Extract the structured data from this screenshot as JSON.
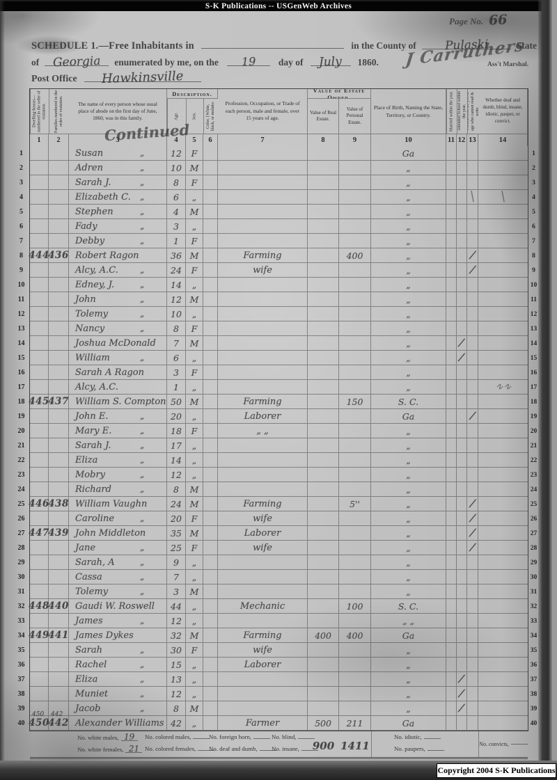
{
  "colors": {
    "paper": "#c0c0c0",
    "ink": "#2d2d2d",
    "pencil": "#5c5c5c",
    "banner_bg": "#040404",
    "banner_text": "#f2f2f2",
    "scan_edge": "#2e2e2e"
  },
  "banner": {
    "text": "S-K Publications -- USGenWeb Archives"
  },
  "copyright": {
    "text": "Copyright 2004 S-K Publications"
  },
  "page_header": {
    "page_no_label": "Page No.",
    "page_no_value": "66",
    "schedule_line": "SCHEDULE 1.—Free Inhabitants in",
    "county_label": "in the County of",
    "county_value": "Pulaski",
    "state_label": "State",
    "of_label": "of",
    "state_value": "Georgia",
    "enumerated_label": "enumerated by me, on the",
    "day_value": "19",
    "day_of_label": "day of",
    "month_value": "July",
    "year_label": "1860.",
    "marshal_signature": "J Carruthers",
    "marshal_label": "Ass't Marshal.",
    "post_office_label": "Post Office",
    "post_office_value": "Hawkinsville"
  },
  "table": {
    "continued_note": "Continued",
    "group_headers": {
      "descriptions": "Description.",
      "estate": "Value of Estate Owned."
    },
    "columns": [
      {
        "no": "1",
        "title": "Dwelling-houses—numbered in the order of visitation."
      },
      {
        "no": "2",
        "title": "Families numbered in the order of visitation."
      },
      {
        "no": "3",
        "title": "The name of every person whose usual place of abode on the first day of June, 1860, was in this family."
      },
      {
        "no": "4",
        "title": "Age."
      },
      {
        "no": "5",
        "title": "Sex."
      },
      {
        "no": "6",
        "title": "Color, {White, black, or mulatto."
      },
      {
        "no": "7",
        "title": "Profession, Occupation, or Trade of each person, male and female, over 15 years of age."
      },
      {
        "no": "8",
        "title": "Value of Real Estate."
      },
      {
        "no": "9",
        "title": "Value of Personal Estate."
      },
      {
        "no": "10",
        "title": "Place of Birth, Naming the State, Territory, or Country."
      },
      {
        "no": "11",
        "title": "Married within the year."
      },
      {
        "no": "12",
        "title": "Attended School within the year."
      },
      {
        "no": "13",
        "title": "Persons over 20 y'rs of age who cannot read & write."
      },
      {
        "no": "14",
        "title": "Whether deaf and dumb, blind, insane, idiotic, pauper, or convict."
      }
    ],
    "rows": [
      {
        "n": 1,
        "name": "Susan",
        "dit": true,
        "age": "12",
        "sex": "F",
        "bi": "Ga"
      },
      {
        "n": 2,
        "name": "Adren",
        "dit": true,
        "age": "10",
        "sex": "M",
        "bi": ",,"
      },
      {
        "n": 3,
        "name": "Sarah J.",
        "dit": true,
        "age": "8",
        "sex": "F",
        "bi": ",,"
      },
      {
        "n": 4,
        "name": "Elizabeth C.",
        "dit": true,
        "age": "6",
        "sex": ",,",
        "bi": ",,",
        "st": "slashes"
      },
      {
        "n": 5,
        "name": "Stephen",
        "dit": true,
        "age": "4",
        "sex": "M",
        "bi": ",,"
      },
      {
        "n": 6,
        "name": "Fady",
        "dit": true,
        "age": "3",
        "sex": ",,",
        "bi": ",,"
      },
      {
        "n": 7,
        "name": "Debby",
        "dit": true,
        "age": "1",
        "sex": "F",
        "bi": ",,"
      },
      {
        "n": 8,
        "dw": "444",
        "fa": "436",
        "name": "Robert Ragon",
        "age": "36",
        "sex": "M",
        "occ": "Farming",
        "pe": "400",
        "bi": ",,",
        "t13": true
      },
      {
        "n": 9,
        "name": "Alcy, A.C.",
        "dit": true,
        "age": "24",
        "sex": "F",
        "occ": "wife",
        "bi": ",,",
        "t13": true
      },
      {
        "n": 10,
        "name": "Edney, J.",
        "dit": true,
        "age": "14",
        "sex": ",,",
        "bi": ",,"
      },
      {
        "n": 11,
        "name": "John",
        "dit": true,
        "age": "12",
        "sex": "M",
        "bi": ",,"
      },
      {
        "n": 12,
        "name": "Tolemy",
        "dit": true,
        "age": "10",
        "sex": ",,",
        "bi": ",,"
      },
      {
        "n": 13,
        "name": "Nancy",
        "dit": true,
        "age": "8",
        "sex": "F",
        "bi": ",,"
      },
      {
        "n": 14,
        "name": "Joshua McDonald",
        "age": "7",
        "sex": "M",
        "bi": ",,",
        "t12": true
      },
      {
        "n": 15,
        "name": "William",
        "dit": true,
        "age": "6",
        "sex": ",,",
        "bi": ",,",
        "t12": true
      },
      {
        "n": 16,
        "name": "Sarah A Ragon",
        "age": "3",
        "sex": "F",
        "bi": ",,"
      },
      {
        "n": 17,
        "name": "Alcy, A.C.",
        "age": "1",
        "sex": ",,",
        "bi": ",,",
        "st": "scribble"
      },
      {
        "n": 18,
        "dw": "445",
        "fa": "437",
        "name": "William S. Compton",
        "age": "50",
        "sex": "M",
        "occ": "Farming",
        "pe": "150",
        "bi": "S. C."
      },
      {
        "n": 19,
        "name": "John E.",
        "dit": true,
        "age": "20",
        "sex": ",,",
        "occ": "Laborer",
        "bi": "Ga",
        "t13": true
      },
      {
        "n": 20,
        "name": "Mary E.",
        "dit": true,
        "age": "18",
        "sex": "F",
        "occ": ",, ,,",
        "bi": ",,"
      },
      {
        "n": 21,
        "name": "Sarah J.",
        "dit": true,
        "age": "17",
        "sex": ",,",
        "bi": ",,"
      },
      {
        "n": 22,
        "name": "Eliza",
        "dit": true,
        "age": "14",
        "sex": ",,",
        "bi": ",,"
      },
      {
        "n": 23,
        "name": "Mobry",
        "dit": true,
        "age": "12",
        "sex": ",,",
        "bi": ",,"
      },
      {
        "n": 24,
        "name": "Richard",
        "dit": true,
        "age": "8",
        "sex": "M",
        "bi": ",,"
      },
      {
        "n": 25,
        "dw": "446",
        "fa": "438",
        "name": "William Vaughn",
        "age": "24",
        "sex": "M",
        "occ": "Farming",
        "pe": "5''",
        "bi": ",,",
        "t13": true
      },
      {
        "n": 26,
        "name": "Caroline",
        "dit": true,
        "age": "20",
        "sex": "F",
        "occ": "wife",
        "bi": ",,",
        "t13": true
      },
      {
        "n": 27,
        "dw": "447",
        "fa": "439",
        "name": "John Middleton",
        "age": "35",
        "sex": "M",
        "occ": "Laborer",
        "bi": ",,",
        "t13": true
      },
      {
        "n": 28,
        "name": "Jane",
        "dit": true,
        "age": "25",
        "sex": "F",
        "occ": "wife",
        "bi": ",,",
        "t13": true
      },
      {
        "n": 29,
        "name": "Sarah, A",
        "dit": true,
        "age": "9",
        "sex": ",,",
        "bi": ",,"
      },
      {
        "n": 30,
        "name": "Cassa",
        "dit": true,
        "age": "7",
        "sex": ",,",
        "bi": ",,"
      },
      {
        "n": 31,
        "name": "Tolemy",
        "dit": true,
        "age": "3",
        "sex": "M",
        "bi": ",,"
      },
      {
        "n": 32,
        "dw": "448",
        "fa": "440",
        "name": "Gaudi W. Roswell",
        "age": "44",
        "sex": ",,",
        "occ": "Mechanic",
        "pe": "100",
        "bi": "S. C."
      },
      {
        "n": 33,
        "name": "James",
        "dit": true,
        "age": "12",
        "sex": ",,",
        "bi": ",, ,,"
      },
      {
        "n": 34,
        "dw": "449",
        "fa": "441",
        "name": "James Dykes",
        "age": "32",
        "sex": "M",
        "occ": "Farming",
        "re": "400",
        "pe": "400",
        "bi": "Ga"
      },
      {
        "n": 35,
        "name": "Sarah",
        "dit": true,
        "age": "30",
        "sex": "F",
        "occ": "wife",
        "bi": ",,"
      },
      {
        "n": 36,
        "name": "Rachel",
        "dit": true,
        "age": "15",
        "sex": ",,",
        "occ": "Laborer",
        "bi": ",,"
      },
      {
        "n": 37,
        "name": "Eliza",
        "dit": true,
        "age": "13",
        "sex": ",,",
        "bi": ",,",
        "t12": true
      },
      {
        "n": 38,
        "name": "Muniet",
        "dit": true,
        "age": "12",
        "sex": ",,",
        "bi": ",,",
        "t12": true
      },
      {
        "n": 39,
        "name": "Jacob",
        "dit": true,
        "age": "8",
        "sex": "M",
        "bi": ",,",
        "t12": true,
        "dwSmall": "450",
        "faSmall": "442"
      },
      {
        "n": 40,
        "dw": "450",
        "fa": "442",
        "name": "Alexander Williams",
        "age": "42",
        "sex": ",,",
        "occ": "Farmer",
        "re": "500",
        "pe": "211",
        "bi": "Ga"
      }
    ]
  },
  "summary": {
    "line1": [
      {
        "label": "No. white males,",
        "value": "19"
      },
      {
        "label": "No. colored males,",
        "value": ""
      },
      {
        "label": "No. foreign born,",
        "value": ""
      },
      {
        "label": "No. blind,",
        "value": ""
      }
    ],
    "line2": [
      {
        "label": "No. white females,",
        "value": "21"
      },
      {
        "label": "No. colored females,",
        "value": ""
      },
      {
        "label": "No. deaf and dumb,",
        "value": ""
      },
      {
        "label": "No. insane,",
        "value": ""
      }
    ],
    "right_top": {
      "label": "No. idiotic,",
      "value": ""
    },
    "right_bottom": {
      "label": "No. paupers,",
      "value": ""
    },
    "convicts": {
      "label": "No. convicts,",
      "value": ""
    },
    "totals": {
      "real": "900",
      "personal": "1411"
    }
  }
}
